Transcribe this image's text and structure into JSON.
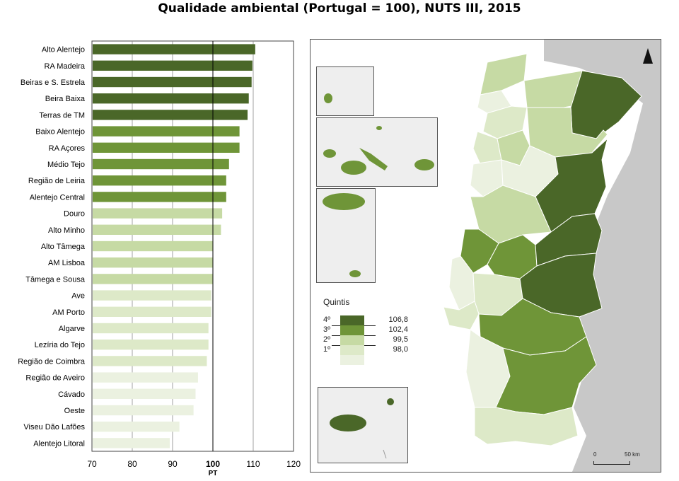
{
  "title": "Qualidade ambiental (Portugal = 100), NUTS III, 2015",
  "chart_data": {
    "type": "bar",
    "orientation": "horizontal",
    "title": "Qualidade ambiental (Portugal = 100), NUTS III, 2015",
    "xlabel": "PT",
    "reference_value": 100,
    "xlim": [
      70,
      120
    ],
    "x_ticks": [
      70,
      80,
      90,
      100,
      110,
      120
    ],
    "grid": true,
    "categories": [
      "Alto Alentejo",
      "RA Madeira",
      "Beiras e S. Estrela",
      "Beira Baixa",
      "Terras de TM",
      "Baixo Alentejo",
      "RA Açores",
      "Médio Tejo",
      "Região de Leiria",
      "Alentejo Central",
      "Douro",
      "Alto Minho",
      "Alto Tâmega",
      "AM Lisboa",
      "Tâmega e Sousa",
      "Ave",
      "AM Porto",
      "Algarve",
      "Lezíria do Tejo",
      "Região de Coimbra",
      "Região de Aveiro",
      "Cávado",
      "Oeste",
      "Viseu Dão Lafões",
      "Alentejo Litoral"
    ],
    "values": [
      110.5,
      109.8,
      109.6,
      108.9,
      108.6,
      106.6,
      106.6,
      104.0,
      103.3,
      103.3,
      102.3,
      102.0,
      100.0,
      100.0,
      100.0,
      99.6,
      99.6,
      98.9,
      98.9,
      98.5,
      96.3,
      95.7,
      95.2,
      91.7,
      89.3
    ],
    "quintile": [
      4,
      4,
      4,
      4,
      4,
      3,
      3,
      3,
      3,
      3,
      2,
      2,
      2,
      2,
      2,
      1,
      1,
      1,
      1,
      1,
      0,
      0,
      0,
      0,
      0
    ]
  },
  "colors": {
    "q4": "#4a6728",
    "q3": "#6f9538",
    "q2": "#c6daa4",
    "q1": "#dde9c8",
    "q0": "#ebf1e0",
    "sea_land_spain": "#c8c8c8",
    "inset_bg": "#eeeeee"
  },
  "map": {
    "legend": {
      "title": "Quintis",
      "rows": [
        {
          "label": "4º",
          "value": "106,8"
        },
        {
          "label": "3º",
          "value": "102,4"
        },
        {
          "label": "2º",
          "value": "99,5"
        },
        {
          "label": "1º",
          "value": "98,0"
        }
      ]
    },
    "scale": {
      "start": "0",
      "end": "50 km"
    },
    "north_icon": "north-arrow-icon"
  }
}
